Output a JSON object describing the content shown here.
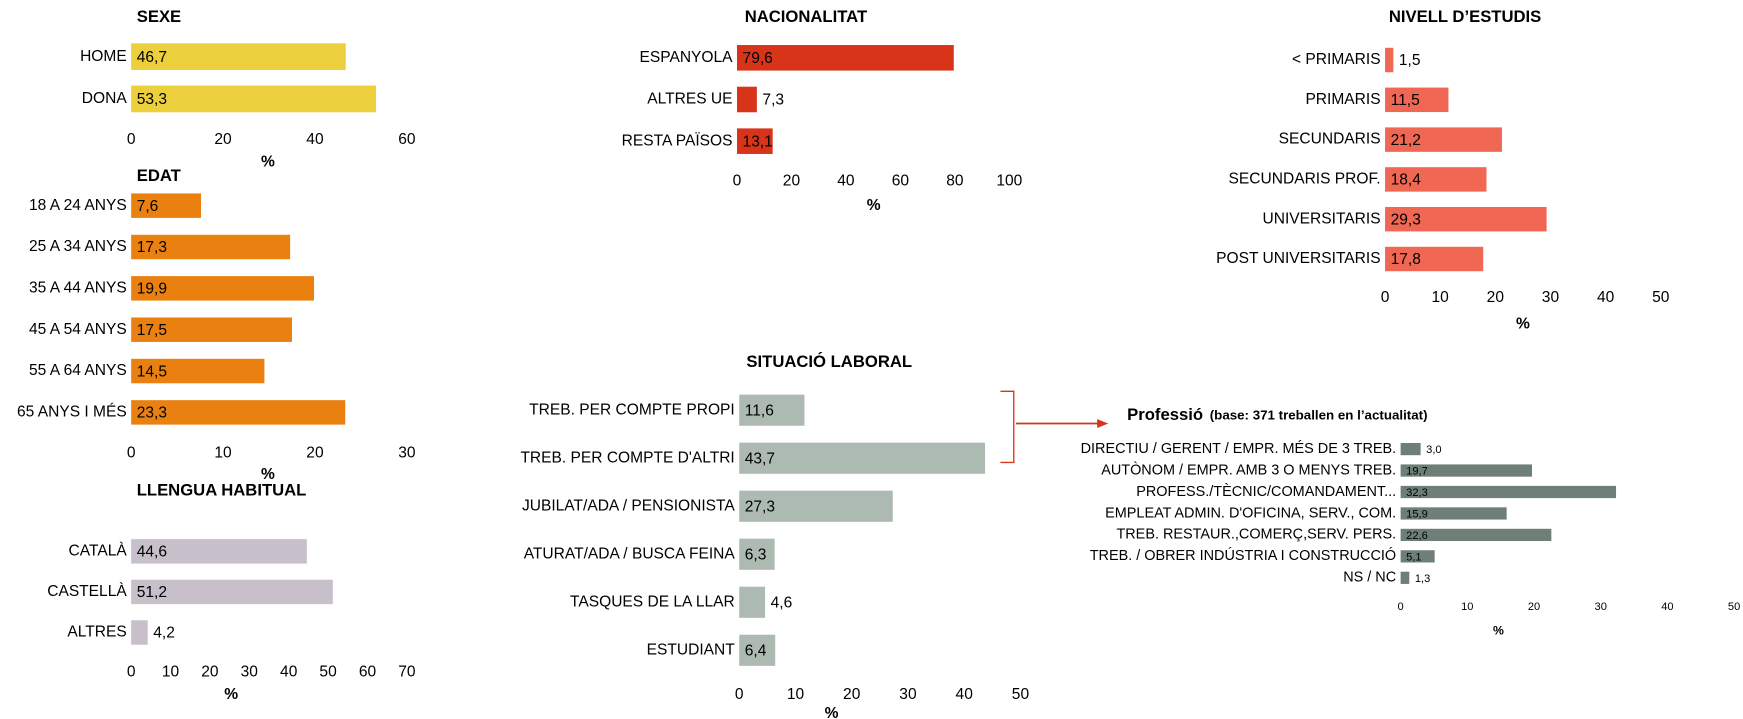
{
  "chart_data": [
    {
      "type": "bar",
      "orientation": "horizontal",
      "title": "SEXE",
      "categories": [
        "HOME",
        "DONA"
      ],
      "values": [
        46.7,
        53.3
      ],
      "value_labels": [
        "46,7",
        "53,3"
      ],
      "color": "#eccf3c",
      "xlim": [
        0,
        60
      ],
      "xticks": [
        0,
        20,
        40,
        60
      ],
      "xlabel": "%"
    },
    {
      "type": "bar",
      "orientation": "horizontal",
      "title": "EDAT",
      "categories": [
        "18 A 24 ANYS",
        "25 A 34 ANYS",
        "35 A 44 ANYS",
        "45 A 54 ANYS",
        "55 A 64 ANYS",
        "65 ANYS I MÉS"
      ],
      "values": [
        7.6,
        17.3,
        19.9,
        17.5,
        14.5,
        23.3
      ],
      "value_labels": [
        "7,6",
        "17,3",
        "19,9",
        "17,5",
        "14,5",
        "23,3"
      ],
      "color": "#e98010",
      "xlim": [
        0,
        30
      ],
      "xticks": [
        0,
        10,
        20,
        30
      ],
      "xlabel": "%"
    },
    {
      "type": "bar",
      "orientation": "horizontal",
      "title": "LLENGUA HABITUAL",
      "categories": [
        "CATALÀ",
        "CASTELLÀ",
        "ALTRES"
      ],
      "values": [
        44.6,
        51.2,
        4.2
      ],
      "value_labels": [
        "44,6",
        "51,2",
        "4,2"
      ],
      "color": "#c7c0cb",
      "xlim": [
        0,
        70
      ],
      "xticks": [
        0,
        10,
        20,
        30,
        40,
        50,
        60,
        70
      ],
      "xlabel": "%"
    },
    {
      "type": "bar",
      "orientation": "horizontal",
      "title": "NACIONALITAT",
      "categories": [
        "ESPANYOLA",
        "ALTRES UE",
        "RESTA PAÏSOS"
      ],
      "values": [
        79.6,
        7.3,
        13.1
      ],
      "value_labels": [
        "79,6",
        "7,3",
        "13,1"
      ],
      "color": "#d7341a",
      "xlim": [
        0,
        100
      ],
      "xticks": [
        0,
        20,
        40,
        60,
        80,
        100
      ],
      "xlabel": "%"
    },
    {
      "type": "bar",
      "orientation": "horizontal",
      "title": "NIVELL D’ESTUDIS",
      "categories": [
        "< PRIMARIS",
        "PRIMARIS",
        "SECUNDARIS",
        "SECUNDARIS PROF.",
        "UNIVERSITARIS",
        "POST UNIVERSITARIS"
      ],
      "values": [
        1.5,
        11.5,
        21.2,
        18.4,
        29.3,
        17.8
      ],
      "value_labels": [
        "1,5",
        "11,5",
        "21,2",
        "18,4",
        "29,3",
        "17,8"
      ],
      "color": "#f06853",
      "xlim": [
        0,
        50
      ],
      "xticks": [
        0,
        10,
        20,
        30,
        40,
        50
      ],
      "xlabel": "%"
    },
    {
      "type": "bar",
      "orientation": "horizontal",
      "title": "SITUACIÓ LABORAL",
      "categories": [
        "TREB. PER COMPTE PROPI",
        "TREB. PER COMPTE D'ALTRI",
        "JUBILAT/ADA / PENSIONISTA",
        "ATURAT/ADA / BUSCA FEINA",
        "TASQUES DE LA LLAR",
        "ESTUDIANT"
      ],
      "values": [
        11.6,
        43.7,
        27.3,
        6.3,
        4.6,
        6.4
      ],
      "value_labels": [
        "11,6",
        "43,7",
        "27,3",
        "6,3",
        "4,6",
        "6,4"
      ],
      "color": "#adbab2",
      "xlim": [
        0,
        50
      ],
      "xticks": [
        0,
        10,
        20,
        30,
        40,
        50
      ],
      "xlabel": "%"
    },
    {
      "type": "bar",
      "orientation": "horizontal",
      "title": "Professió",
      "subtitle": "(base: 371  treballen en l’actualitat)",
      "categories": [
        "DIRECTIU / GERENT / EMPR. MÉS DE 3 TREB.",
        "AUTÒNOM / EMPR. AMB 3 O MENYS TREB.",
        "PROFESS./TÈCNIC/COMANDAMENT...",
        "EMPLEAT ADMIN. D'OFICINA, SERV., COM.",
        "TREB. RESTAUR.,COMERÇ,SERV. PERS.",
        "TREB. / OBRER INDÚSTRIA I CONSTRUCCIÓ",
        "NS / NC"
      ],
      "values": [
        3.0,
        19.7,
        32.3,
        15.9,
        22.6,
        5.1,
        1.3
      ],
      "value_labels": [
        "3,0",
        "19,7",
        "32,3",
        "15,9",
        "22,6",
        "5,1",
        "1,3"
      ],
      "color": "#6e7f77",
      "xlim": [
        0,
        50
      ],
      "xticks": [
        0,
        10,
        20,
        30,
        40,
        50
      ],
      "xlabel": "%"
    }
  ]
}
